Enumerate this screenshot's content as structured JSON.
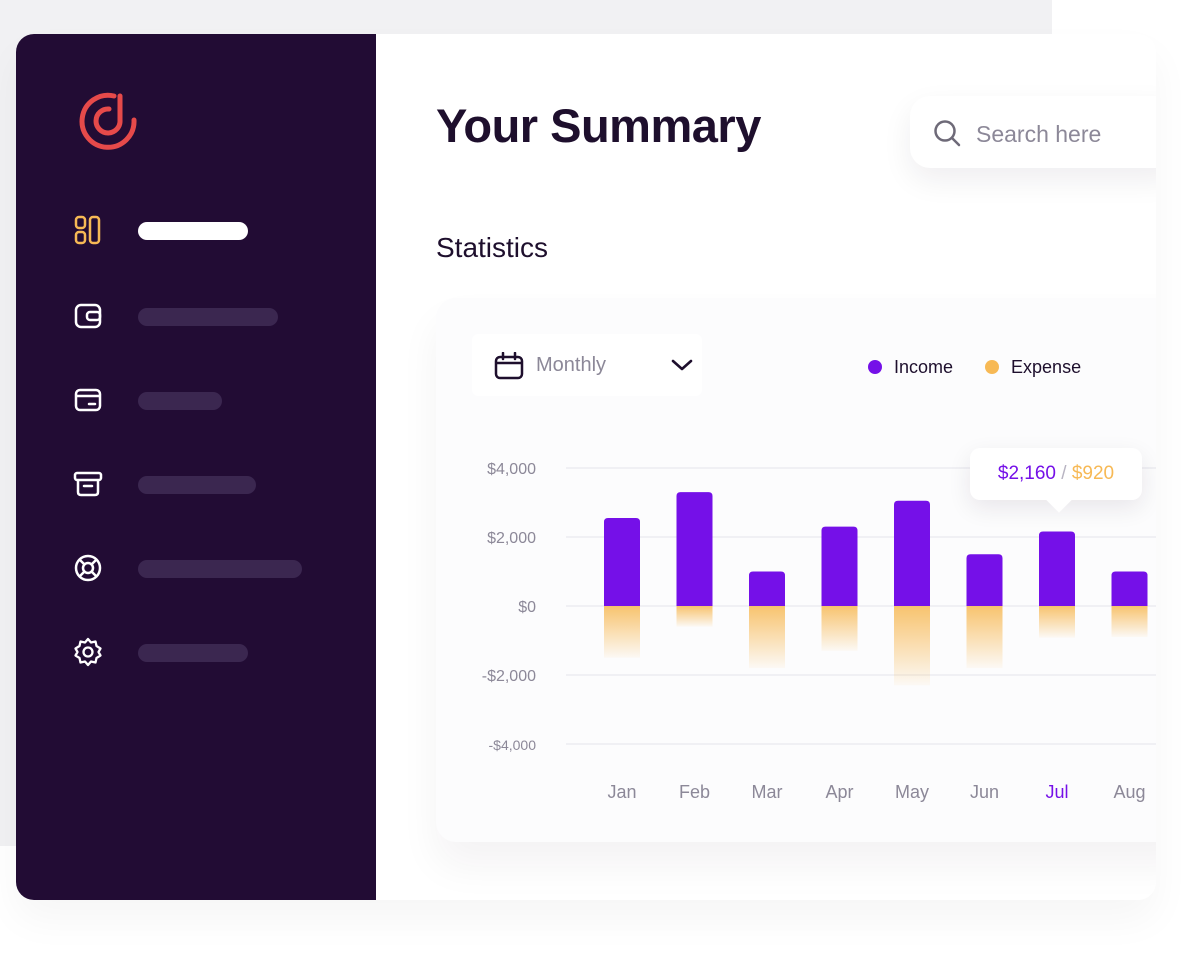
{
  "sidebar": {
    "logo": {
      "icon": "logo-icon",
      "color": "#e64a4a"
    },
    "items": [
      {
        "icon": "dashboard-icon",
        "active": true,
        "color": "#f7b955"
      },
      {
        "icon": "wallet-icon",
        "active": false
      },
      {
        "icon": "card-icon",
        "active": false
      },
      {
        "icon": "archive-icon",
        "active": false
      },
      {
        "icon": "support-icon",
        "active": false
      },
      {
        "icon": "settings-icon",
        "active": false
      }
    ]
  },
  "header": {
    "title": "Your Summary",
    "search": {
      "placeholder": "Search here",
      "value": ""
    }
  },
  "statistics": {
    "title": "Statistics",
    "period": {
      "selected": "Monthly"
    },
    "legend": [
      {
        "label": "Income",
        "color": "#7510e8"
      },
      {
        "label": "Expense",
        "color": "#f7b955"
      }
    ],
    "tooltip": {
      "income": "$2,160",
      "separator": "/",
      "expense": "$920"
    }
  },
  "chart_data": {
    "type": "bar",
    "categories": [
      "Jan",
      "Feb",
      "Mar",
      "Apr",
      "May",
      "Jun",
      "Jul",
      "Aug"
    ],
    "highlight_category": "Jul",
    "y_ticks": [
      "$4,000",
      "$2,000",
      "$0",
      "-$2,000",
      "-$4,000"
    ],
    "ylim": [
      -4000,
      4000
    ],
    "series": [
      {
        "name": "Income",
        "values": [
          2550,
          3300,
          1000,
          2300,
          3050,
          1500,
          2160,
          1000
        ],
        "color": "#7510e8"
      },
      {
        "name": "Expense",
        "values": [
          -1500,
          -600,
          -1800,
          -1300,
          -2300,
          -1800,
          -920,
          -900
        ],
        "color": "#f7b955"
      }
    ],
    "grid": true
  }
}
